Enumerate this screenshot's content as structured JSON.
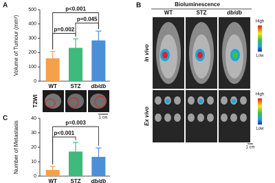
{
  "chart_data": [
    {
      "type": "bar",
      "panel": "A",
      "ylabel": "Volume of Tumour (mm³)",
      "categories": [
        "WT",
        "STZ",
        "db/db"
      ],
      "values": [
        160,
        233,
        285
      ],
      "errors": [
        48,
        63,
        65
      ],
      "colors": [
        "#f5a04a",
        "#3dba7c",
        "#4b8fd8"
      ],
      "ylim": [
        0,
        500
      ],
      "yticks": [
        0,
        100,
        200,
        300,
        400,
        500
      ],
      "comparisons": [
        {
          "label": "p=0.002",
          "between": [
            0,
            1
          ]
        },
        {
          "label": "p=0.045",
          "between": [
            1,
            2
          ]
        },
        {
          "label": "p<0.001",
          "between": [
            0,
            2
          ]
        }
      ]
    },
    {
      "type": "bar",
      "panel": "C",
      "ylabel": "Number of Metastasis",
      "categories": [
        "WT",
        "STZ",
        "db/db"
      ],
      "values": [
        4.3,
        17,
        13.3
      ],
      "errors": [
        2.5,
        6.3,
        6.2
      ],
      "colors": [
        "#f5a04a",
        "#3dba7c",
        "#4b8fd8"
      ],
      "ylim": [
        0,
        40
      ],
      "yticks": [
        0,
        10,
        20,
        30,
        40
      ],
      "comparisons": [
        {
          "label": "p<0.001",
          "between": [
            0,
            1
          ]
        },
        {
          "label": "p=0.003",
          "between": [
            0,
            2
          ]
        }
      ]
    }
  ],
  "mri": {
    "label": "T2WI",
    "scale": "1 cm"
  },
  "imaging": {
    "panel": "B",
    "title": "Bioluminescence",
    "columns": [
      "WT",
      "STZ",
      "db/db"
    ],
    "rows": [
      "In vivo",
      "Ex vivo"
    ],
    "colorbar": {
      "high": "High",
      "low": "Low"
    },
    "scale": "1 cm"
  }
}
